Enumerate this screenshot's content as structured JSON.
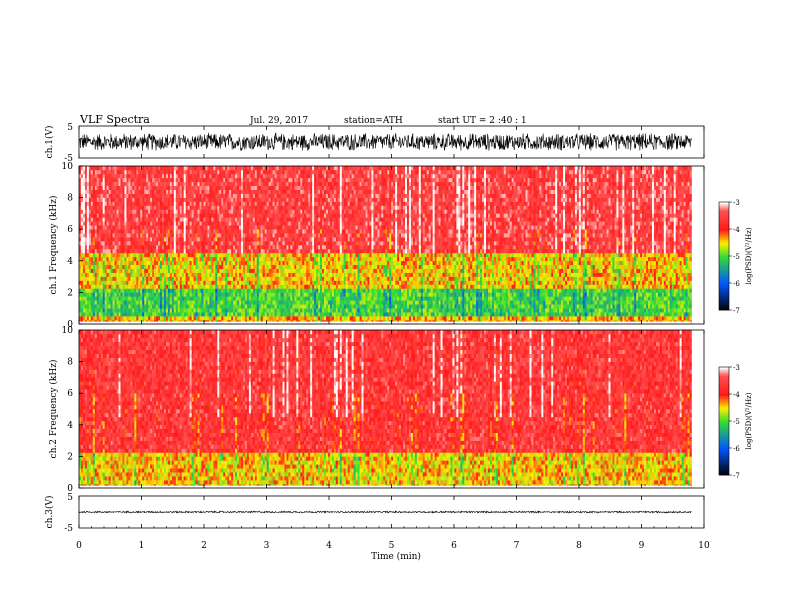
{
  "header": {
    "title": "VLF  Spectra",
    "date": "Jul.  29,  2017",
    "station": "station=ATH",
    "start_time": "start  UT  =   2  :40 : 1"
  },
  "colors": {
    "spectrogram_low": "#000000",
    "spectrogram_mid_low": "#0055ff",
    "spectrogram_mid": "#33dd33",
    "spectrogram_mid_high": "#ffee00",
    "spectrogram_high": "#ff1a1a",
    "spectrogram_top": "#ffffff",
    "waveform": "#000000"
  },
  "chart_data": [
    {
      "type": "line",
      "name": "ch1-waveform",
      "ylabel": "ch.1(V)",
      "ylim": [
        -5,
        5
      ],
      "y_ticks": [
        "5",
        "-5"
      ],
      "xlim": [
        0,
        10
      ],
      "description_values": {
        "amplitude_v": 3.0
      }
    },
    {
      "type": "heatmap",
      "name": "ch1-spectrogram",
      "ylabel": "ch.1 Frequency  (kHz)",
      "ylim": [
        0,
        10
      ],
      "y_ticks": [
        "0",
        "2",
        "4",
        "6",
        "8",
        "10"
      ],
      "xlim": [
        0,
        10
      ],
      "data_end_min": 9.8,
      "band_levels": [
        {
          "f_from": 0,
          "f_to": 0.6,
          "level": -4.3
        },
        {
          "f_from": 0.6,
          "f_to": 2.2,
          "level": -5.0
        },
        {
          "f_from": 2.2,
          "f_to": 4.6,
          "level": -4.4
        },
        {
          "f_from": 4.6,
          "f_to": 10,
          "level": -3.5
        }
      ],
      "colorbar": {
        "label": "log(PSD)(V²/Hz)",
        "range": [
          -7,
          -3
        ],
        "ticks": [
          "-3",
          "-4",
          "-5",
          "-6",
          "-7"
        ]
      }
    },
    {
      "type": "heatmap",
      "name": "ch2-spectrogram",
      "ylabel": "ch.2 Frequency  (kHz)",
      "ylim": [
        0,
        10
      ],
      "y_ticks": [
        "0",
        "2",
        "4",
        "6",
        "8",
        "10"
      ],
      "xlim": [
        0,
        10
      ],
      "data_end_min": 9.8,
      "band_levels": [
        {
          "f_from": 0,
          "f_to": 2.2,
          "level": -4.4
        },
        {
          "f_from": 2.2,
          "f_to": 10,
          "level": -3.6
        }
      ],
      "colorbar": {
        "label": "log(PSD)(V²/Hz)",
        "range": [
          -7,
          -3
        ],
        "ticks": [
          "-3",
          "-4",
          "-5",
          "-6",
          "-7"
        ]
      }
    },
    {
      "type": "line",
      "name": "ch3-waveform",
      "ylabel": "ch.3(V)",
      "ylim": [
        -5,
        5
      ],
      "y_ticks": [
        "5",
        "-5"
      ],
      "xlim": [
        0,
        10
      ],
      "description_values": {
        "amplitude_v": 0.3,
        "offset_v": 0
      }
    }
  ],
  "x_axis": {
    "label": "Time  (min)",
    "ticks": [
      "0",
      "1",
      "2",
      "3",
      "4",
      "5",
      "6",
      "7",
      "8",
      "9",
      "10"
    ]
  }
}
